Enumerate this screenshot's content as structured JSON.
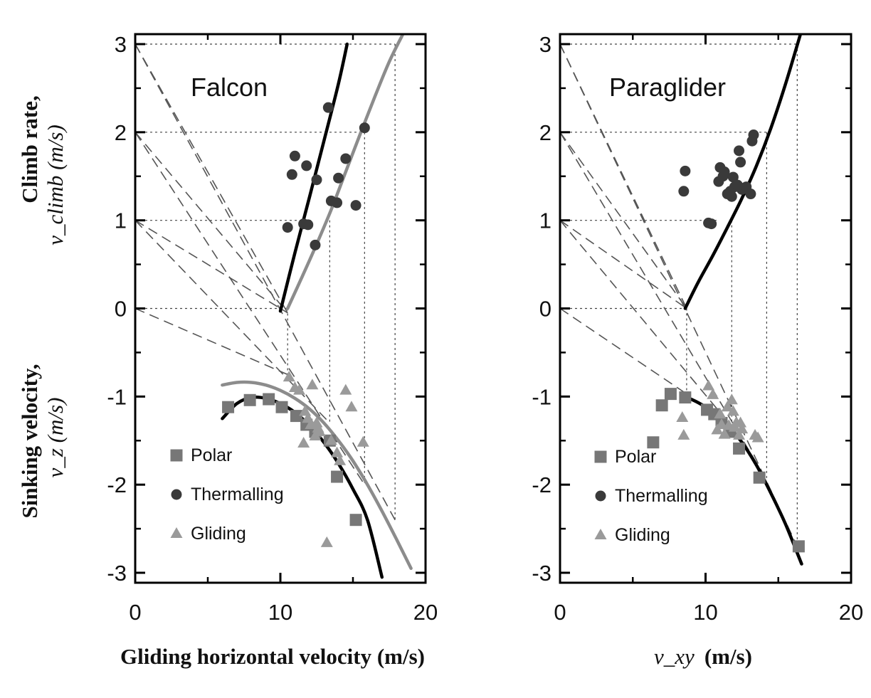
{
  "chart_data": [
    {
      "type": "scatter",
      "title": "Falcon",
      "xlabel": "Gliding horizontal velocity (m/s)",
      "ylabel_top": "Climb rate,",
      "ylabel_top_symbol": "v_climb (m/s)",
      "ylabel_bottom": "Sinking velocity,",
      "ylabel_bottom_symbol": "v_z (m/s)",
      "xlim": [
        0,
        20
      ],
      "ylim": [
        -3,
        3
      ],
      "x_ticks": [
        "0",
        "10",
        "20"
      ],
      "y_ticks": [
        "3",
        "2",
        "1",
        "0",
        "-1",
        "-2",
        "-3"
      ],
      "grid": "dotted guide lines at y = 0, 1, 2, 3",
      "legend_position": "lower-left",
      "legend": [
        "Polar",
        "Thermalling",
        "Gliding"
      ],
      "colors": {
        "polar": "#777777",
        "thermalling": "#3a3a3a",
        "gliding": "#9a9a9a",
        "fit_black": "#000000",
        "fit_gray": "#8c8c8c",
        "guides": "#555555"
      },
      "series": [
        {
          "name": "Polar",
          "marker": "square",
          "x": [
            6.4,
            7.9,
            9.2,
            10.1,
            11.1,
            11.8,
            12.4,
            13.4,
            13.9,
            15.2
          ],
          "y": [
            -1.12,
            -1.04,
            -1.03,
            -1.12,
            -1.22,
            -1.32,
            -1.4,
            -1.5,
            -1.91,
            -2.4
          ]
        },
        {
          "name": "Thermalling",
          "marker": "circle",
          "x": [
            10.5,
            10.8,
            11.0,
            11.6,
            11.8,
            11.9,
            12.4,
            12.5,
            13.3,
            13.5,
            13.9,
            14.0,
            14.5,
            15.2,
            15.8
          ],
          "y": [
            0.92,
            1.52,
            1.73,
            0.96,
            1.62,
            0.95,
            0.72,
            1.46,
            2.28,
            1.22,
            1.2,
            1.48,
            1.7,
            1.17,
            2.05
          ]
        },
        {
          "name": "Gliding",
          "marker": "triangle",
          "x": [
            10.6,
            11.0,
            11.3,
            11.6,
            11.7,
            11.9,
            12.1,
            12.2,
            12.4,
            12.5,
            12.6,
            12.7,
            13.2,
            13.5,
            13.9,
            14.1,
            14.5,
            14.9,
            15.7
          ],
          "y": [
            -0.78,
            -0.9,
            -0.93,
            -1.53,
            -1.17,
            -1.25,
            -1.32,
            -0.87,
            -1.45,
            -1.3,
            -1.36,
            -1.4,
            -2.66,
            -1.5,
            -1.64,
            -1.73,
            -0.93,
            -1.12,
            -1.52
          ]
        }
      ],
      "curves": [
        {
          "style": "black",
          "x": [
            6.0,
            7.0,
            8.0,
            9.0,
            10.0,
            11.0,
            12.0,
            13.0,
            14.0,
            15.0,
            16.0,
            17.0
          ],
          "y": [
            -1.25,
            -1.08,
            -1.01,
            -1.02,
            -1.08,
            -1.18,
            -1.33,
            -1.52,
            -1.76,
            -2.05,
            -2.4,
            -3.05
          ]
        },
        {
          "style": "gray",
          "x": [
            6.0,
            7.0,
            8.0,
            9.0,
            10.0,
            11.0,
            12.0,
            13.0,
            14.0,
            15.0,
            16.0,
            17.0,
            18.0,
            19.0
          ],
          "y": [
            -0.87,
            -0.84,
            -0.84,
            -0.87,
            -0.93,
            -1.02,
            -1.14,
            -1.3,
            -1.5,
            -1.73,
            -2.0,
            -2.3,
            -2.62,
            -2.95
          ]
        },
        {
          "style": "black",
          "x": [
            10.0,
            11.0,
            12.0,
            13.0,
            14.0,
            14.6
          ],
          "y": [
            -0.03,
            0.63,
            1.26,
            1.9,
            2.55,
            3.0
          ]
        },
        {
          "style": "gray",
          "x": [
            10.5,
            11.5,
            12.5,
            13.5,
            14.5,
            15.5,
            16.5,
            17.5,
            18.4
          ],
          "y": [
            0.0,
            0.36,
            0.73,
            1.12,
            1.55,
            1.98,
            2.4,
            2.8,
            3.1
          ]
        }
      ],
      "dashed_lines": [
        {
          "from": [
            0,
            0
          ],
          "to": [
            10.5,
            -0.75
          ]
        },
        {
          "from": [
            0,
            1
          ],
          "to": [
            13.4,
            -1.3
          ]
        },
        {
          "from": [
            0,
            2
          ],
          "to": [
            15.8,
            -2.0
          ]
        },
        {
          "from": [
            0,
            3
          ],
          "to": [
            17.9,
            -2.4
          ]
        },
        {
          "from": [
            0,
            3
          ],
          "to": [
            10.5,
            -0.05
          ]
        },
        {
          "from": [
            0,
            2
          ],
          "to": [
            10.5,
            -0.05
          ]
        },
        {
          "from": [
            0,
            1
          ],
          "to": [
            10.5,
            -0.05
          ]
        }
      ],
      "dotted_guides": [
        {
          "from": [
            0,
            0
          ],
          "to": [
            10.5,
            0
          ]
        },
        {
          "from": [
            0,
            1
          ],
          "to": [
            12.1,
            1
          ]
        },
        {
          "from": [
            0,
            2
          ],
          "to": [
            15.8,
            2
          ]
        },
        {
          "from": [
            0,
            3
          ],
          "to": [
            17.9,
            3
          ]
        },
        {
          "from": [
            10.5,
            0
          ],
          "to": [
            10.5,
            -0.8
          ]
        },
        {
          "from": [
            13.4,
            1
          ],
          "to": [
            13.4,
            -1.3
          ]
        },
        {
          "from": [
            15.8,
            2
          ],
          "to": [
            15.8,
            -2.0
          ]
        },
        {
          "from": [
            17.9,
            3
          ],
          "to": [
            17.9,
            -2.4
          ]
        }
      ]
    },
    {
      "type": "scatter",
      "title": "Paraglider",
      "xlabel_symbol": "v_xy",
      "xlabel_unit": "(m/s)",
      "xlim": [
        0,
        20
      ],
      "ylim": [
        -3,
        3
      ],
      "x_ticks": [
        "0",
        "10",
        "20"
      ],
      "y_ticks": [
        "3",
        "2",
        "1",
        "0",
        "-1",
        "-2",
        "-3"
      ],
      "grid": "dotted guide lines at y = 0, 1, 2, 3",
      "legend_position": "lower-left",
      "legend": [
        "Polar",
        "Thermalling",
        "Gliding"
      ],
      "series": [
        {
          "name": "Polar",
          "marker": "square",
          "x": [
            6.4,
            7.0,
            7.6,
            8.6,
            10.1,
            10.6,
            11.1,
            11.7,
            12.3,
            13.7,
            16.4
          ],
          "y": [
            -1.52,
            -1.1,
            -0.97,
            -1.01,
            -1.15,
            -1.2,
            -1.3,
            -1.4,
            -1.59,
            -1.92,
            -2.7
          ]
        },
        {
          "name": "Thermalling",
          "marker": "circle",
          "x": [
            8.5,
            8.6,
            10.2,
            10.4,
            10.9,
            11.0,
            11.2,
            11.3,
            11.5,
            11.7,
            11.8,
            11.9,
            12.0,
            12.2,
            12.3,
            12.4,
            12.5,
            12.8,
            13.1,
            13.2,
            13.3
          ],
          "y": [
            1.33,
            1.56,
            0.97,
            0.96,
            1.44,
            1.6,
            1.5,
            1.55,
            1.3,
            1.33,
            1.27,
            1.49,
            1.38,
            1.4,
            1.79,
            1.66,
            1.35,
            1.38,
            1.3,
            1.9,
            1.97
          ]
        },
        {
          "name": "Gliding",
          "marker": "triangle",
          "x": [
            8.4,
            8.5,
            10.2,
            10.5,
            10.8,
            11.0,
            11.1,
            11.3,
            11.5,
            11.6,
            11.8,
            11.9,
            12.0,
            12.1,
            12.3,
            12.4,
            12.5,
            13.4,
            13.6
          ],
          "y": [
            -1.24,
            -1.44,
            -0.88,
            -0.98,
            -1.38,
            -1.2,
            -1.32,
            -1.43,
            -1.12,
            -1.33,
            -1.04,
            -1.17,
            -1.35,
            -1.3,
            -1.44,
            -1.3,
            -1.37,
            -1.44,
            -1.47
          ]
        }
      ],
      "curves": [
        {
          "style": "black",
          "x": [
            8.6,
            9.5,
            10.5,
            11.5,
            12.5,
            13.5,
            14.5,
            15.5,
            16.6
          ],
          "y": [
            -1.0,
            -1.07,
            -1.17,
            -1.32,
            -1.52,
            -1.78,
            -2.1,
            -2.45,
            -2.9
          ]
        },
        {
          "style": "black",
          "x": [
            8.6,
            9.5,
            10.5,
            11.5,
            12.5,
            13.5,
            14.5,
            15.5,
            16.5
          ],
          "y": [
            0.0,
            0.3,
            0.6,
            0.92,
            1.25,
            1.62,
            2.05,
            2.55,
            3.1
          ]
        }
      ],
      "dashed_lines": [
        {
          "from": [
            0,
            0
          ],
          "to": [
            8.7,
            -0.97
          ]
        },
        {
          "from": [
            0,
            1
          ],
          "to": [
            11.8,
            -1.34
          ]
        },
        {
          "from": [
            0,
            2
          ],
          "to": [
            14.2,
            -1.95
          ]
        },
        {
          "from": [
            0,
            3
          ],
          "to": [
            16.3,
            -2.7
          ]
        },
        {
          "from": [
            0,
            3
          ],
          "to": [
            8.7,
            0.0
          ]
        },
        {
          "from": [
            0,
            2
          ],
          "to": [
            8.7,
            0.0
          ]
        },
        {
          "from": [
            0,
            1
          ],
          "to": [
            8.7,
            0.0
          ]
        }
      ],
      "dotted_guides": [
        {
          "from": [
            0,
            0
          ],
          "to": [
            8.7,
            0
          ]
        },
        {
          "from": [
            0,
            1
          ],
          "to": [
            10.8,
            1
          ]
        },
        {
          "from": [
            0,
            2
          ],
          "to": [
            14.2,
            2
          ]
        },
        {
          "from": [
            0,
            3
          ],
          "to": [
            16.3,
            3
          ]
        },
        {
          "from": [
            8.7,
            0
          ],
          "to": [
            8.7,
            -1.0
          ]
        },
        {
          "from": [
            11.8,
            1
          ],
          "to": [
            11.8,
            -1.34
          ]
        },
        {
          "from": [
            14.2,
            2
          ],
          "to": [
            14.2,
            -1.95
          ]
        },
        {
          "from": [
            16.3,
            3
          ],
          "to": [
            16.3,
            -2.7
          ]
        }
      ]
    }
  ]
}
